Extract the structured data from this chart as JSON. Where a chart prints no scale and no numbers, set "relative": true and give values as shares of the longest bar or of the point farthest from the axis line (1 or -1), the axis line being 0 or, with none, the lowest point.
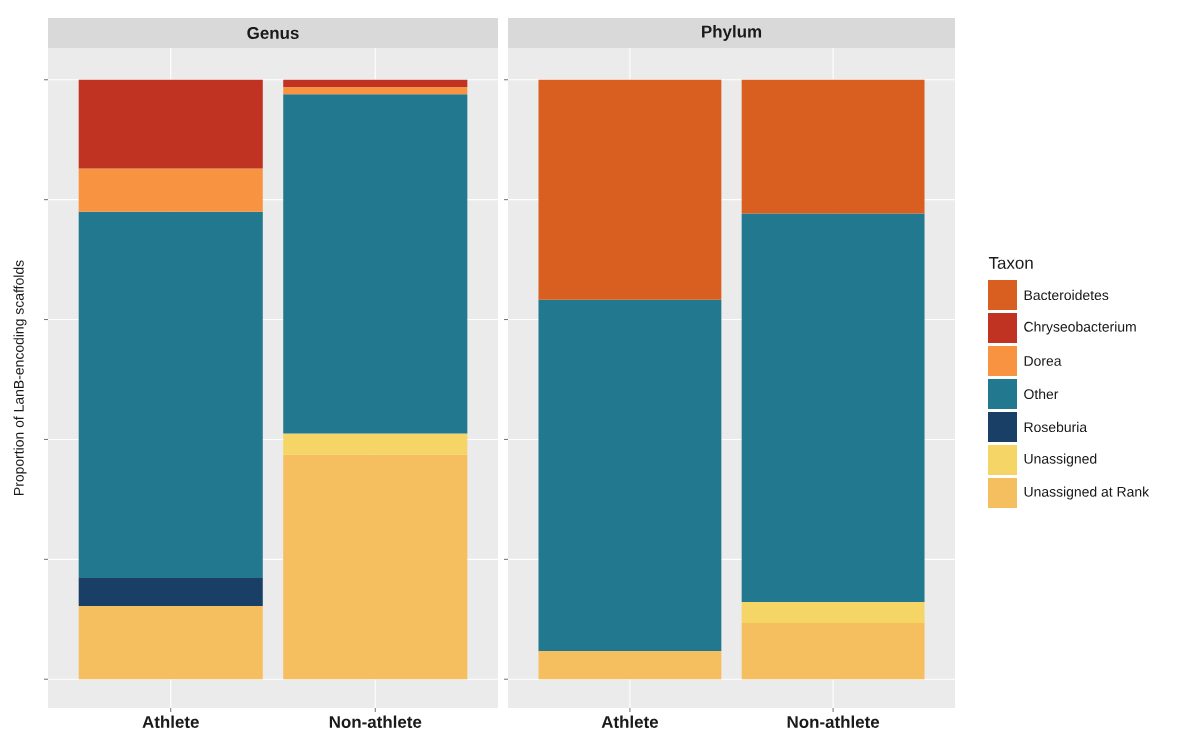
{
  "chart_data": [
    {
      "type": "bar",
      "stacked": true,
      "relative": true,
      "title": "Genus",
      "ylabel": "Proportion of LanB-encoding scaffolds",
      "grid": true,
      "categories": [
        "Athlete",
        "Non-athlete"
      ],
      "series": [
        {
          "color": "#f5bf60",
          "values": [
            0.122,
            0.375
          ]
        },
        {
          "color": "#f5d565",
          "values": [
            null,
            0.035
          ]
        },
        {
          "color": "#1a3f66",
          "values": [
            0.047,
            null
          ]
        },
        {
          "color": "#21788f",
          "values": [
            0.611,
            0.566
          ]
        },
        {
          "color": "#f89441",
          "values": [
            0.072,
            0.012
          ]
        },
        {
          "color": "#c03221",
          "values": [
            0.148,
            0.012
          ]
        }
      ]
    },
    {
      "type": "bar",
      "stacked": true,
      "relative": true,
      "title": "Phylum",
      "grid": true,
      "legend": "right",
      "legend_title": "Taxon",
      "categories": [
        "Athlete",
        "Non-athlete"
      ],
      "series": [
        {
          "name": "Unassigned at Rank",
          "color": "#f5bf60",
          "values": [
            0.047,
            0.094
          ]
        },
        {
          "name": "Unassigned",
          "color": "#f5d565",
          "values": [
            null,
            0.035
          ]
        },
        {
          "name": "Roseburia",
          "color": "#1a3f66",
          "values": [
            null,
            null
          ]
        },
        {
          "name": "Other",
          "color": "#21788f",
          "values": [
            0.586,
            0.648
          ]
        },
        {
          "name": "Dorea",
          "color": "#f89441",
          "values": [
            null,
            null
          ]
        },
        {
          "name": "Chryseobacterium",
          "color": "#c03221",
          "values": [
            null,
            null
          ]
        },
        {
          "name": "Bacteroidetes",
          "color": "#d95f20",
          "values": [
            0.367,
            0.223
          ]
        }
      ]
    }
  ]
}
